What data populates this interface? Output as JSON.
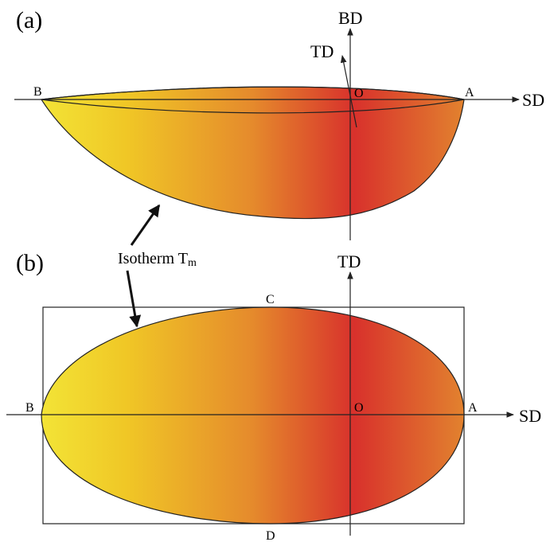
{
  "panel_a": {
    "label": "(a)",
    "axes": {
      "bd": "BD",
      "td": "TD",
      "sd": "SD"
    },
    "points": {
      "b": "B",
      "o": "O",
      "a": "A"
    }
  },
  "annotation": {
    "text": "Isotherm T",
    "subscript": "m"
  },
  "panel_b": {
    "label": "(b)",
    "axes": {
      "td": "TD",
      "sd": "SD"
    },
    "points": {
      "b": "B",
      "o": "O",
      "a": "A",
      "c": "C",
      "d": "D"
    }
  }
}
